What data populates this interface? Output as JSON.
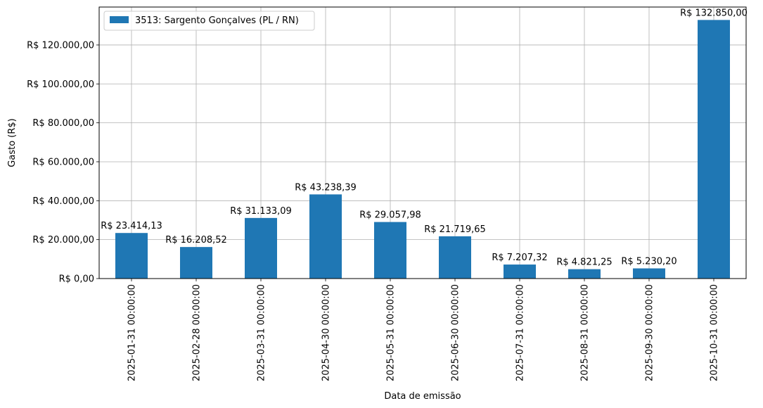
{
  "chart_data": {
    "type": "bar",
    "xlabel": "Data de emissão",
    "ylabel": "Gasto (R$)",
    "categories": [
      "2025-01-31 00:00:00",
      "2025-02-28 00:00:00",
      "2025-03-31 00:00:00",
      "2025-04-30 00:00:00",
      "2025-05-31 00:00:00",
      "2025-06-30 00:00:00",
      "2025-07-31 00:00:00",
      "2025-08-31 00:00:00",
      "2025-09-30 00:00:00",
      "2025-10-31 00:00:00"
    ],
    "series": [
      {
        "name": "3513: Sargento Gonçalves (PL / RN)",
        "color": "#1f77b4",
        "values": [
          23414.13,
          16208.52,
          31133.09,
          43238.39,
          29057.98,
          21719.65,
          7207.32,
          4821.25,
          5230.2,
          132850.0
        ],
        "labels": [
          "R$ 23.414,13",
          "R$ 16.208,52",
          "R$ 31.133,09",
          "R$ 43.238,39",
          "R$ 29.057,98",
          "R$ 21.719,65",
          "R$ 7.207,32",
          "R$ 4.821,25",
          "R$ 5.230,20",
          "R$ 132.850,00"
        ]
      }
    ],
    "ylim": [
      0,
      139492.5
    ],
    "yticks": [
      0,
      20000,
      40000,
      60000,
      80000,
      100000,
      120000
    ],
    "ytick_labels": [
      "R$ 0,00",
      "R$ 20.000,00",
      "R$ 40.000,00",
      "R$ 60.000,00",
      "R$ 80.000,00",
      "R$ 100.000,00",
      "R$ 120.000,00"
    ],
    "grid": true,
    "legend_position": "top-left"
  }
}
